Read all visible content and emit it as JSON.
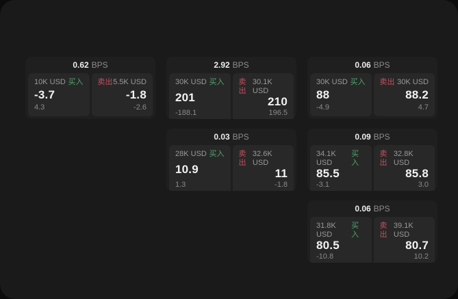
{
  "labels": {
    "buy": "买入",
    "sell": "卖出",
    "bps_unit": "BPS"
  },
  "colors": {
    "buy_green": "#4fa36e",
    "sell_red": "#c0505f",
    "window_bg": "#1a1a1a",
    "card_bg": "#1f1f1f",
    "panel_bg": "#282828"
  },
  "cards": [
    {
      "grid": {
        "row": 1,
        "col": 1
      },
      "bps": "0.62",
      "buy": {
        "size": "10K USD",
        "price": "-3.7",
        "sub": "4.3"
      },
      "sell": {
        "size": "5.5K USD",
        "price": "-1.8",
        "sub": "-2.6"
      }
    },
    {
      "grid": {
        "row": 1,
        "col": 2
      },
      "bps": "2.92",
      "buy": {
        "size": "30K USD",
        "price": "201",
        "sub": "-188.1"
      },
      "sell": {
        "size": "30.1K USD",
        "price": "210",
        "sub": "196.5"
      }
    },
    {
      "grid": {
        "row": 1,
        "col": 3
      },
      "bps": "0.06",
      "buy": {
        "size": "30K USD",
        "price": "88",
        "sub": "-4.9"
      },
      "sell": {
        "size": "30K USD",
        "price": "88.2",
        "sub": "4.7"
      }
    },
    {
      "grid": {
        "row": 2,
        "col": 2
      },
      "bps": "0.03",
      "buy": {
        "size": "28K USD",
        "price": "10.9",
        "sub": "1.3"
      },
      "sell": {
        "size": "32.6K USD",
        "price": "11",
        "sub": "-1.8"
      }
    },
    {
      "grid": {
        "row": 2,
        "col": 3
      },
      "bps": "0.09",
      "buy": {
        "size": "34.1K USD",
        "price": "85.5",
        "sub": "-3.1"
      },
      "sell": {
        "size": "32.8K USD",
        "price": "85.8",
        "sub": "3.0"
      }
    },
    {
      "grid": {
        "row": 3,
        "col": 3
      },
      "bps": "0.06",
      "buy": {
        "size": "31.8K USD",
        "price": "80.5",
        "sub": "-10.8"
      },
      "sell": {
        "size": "39.1K USD",
        "price": "80.7",
        "sub": "10.2"
      }
    }
  ]
}
